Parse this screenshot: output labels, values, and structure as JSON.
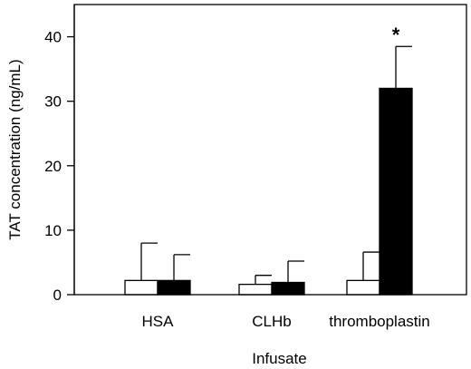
{
  "chart_data": {
    "type": "bar",
    "title": "",
    "xlabel": "Infusate",
    "ylabel": "TAT concentration (ng/mL)",
    "categories": [
      "HSA",
      "CLHb",
      "thromboplastin"
    ],
    "ylim": [
      0,
      45
    ],
    "yticks": [
      0,
      10,
      20,
      30,
      40
    ],
    "grid": false,
    "legend": "none",
    "series": [
      {
        "color": "#ffffff",
        "values": [
          2.2,
          1.6,
          2.2
        ],
        "errors": [
          5.8,
          1.4,
          4.4
        ]
      },
      {
        "color": "#000000",
        "values": [
          2.2,
          1.9,
          32.0
        ],
        "errors": [
          4.0,
          3.3,
          6.5
        ]
      }
    ],
    "annotations": [
      {
        "category": "thromboplastin",
        "series": 1,
        "text": "*"
      }
    ]
  }
}
